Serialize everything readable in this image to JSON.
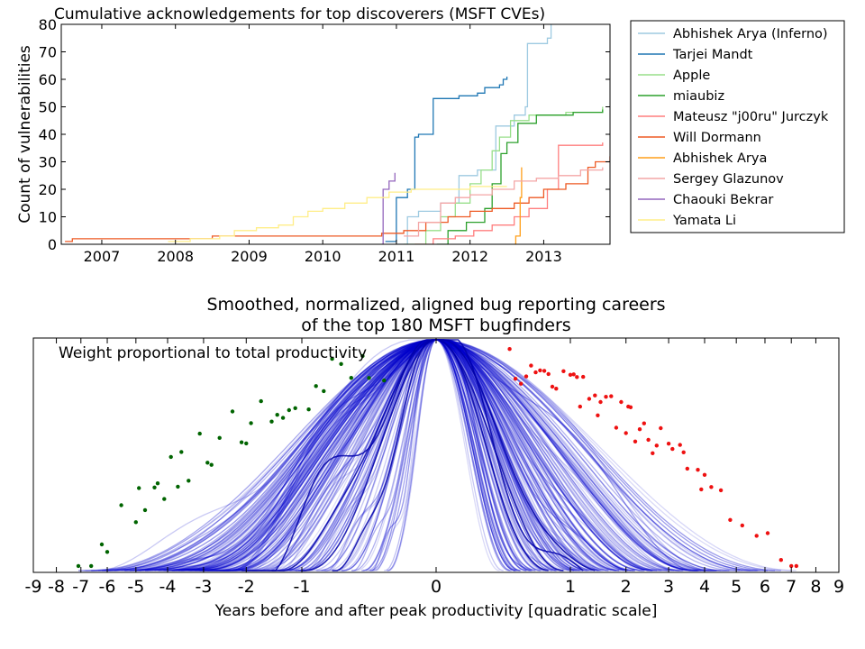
{
  "chart_data": [
    {
      "type": "line",
      "title": "Cumulative acknowledgements for top discoverers (MSFT CVEs)",
      "xlabel": "",
      "ylabel": "Count of vulnerabilities",
      "xlim": [
        2006.45,
        2013.9
      ],
      "ylim": [
        0,
        80
      ],
      "x_ticks": [
        "2007",
        "2008",
        "2009",
        "2010",
        "2011",
        "2012",
        "2013"
      ],
      "y_ticks": [
        "0",
        "10",
        "20",
        "30",
        "40",
        "50",
        "60",
        "70",
        "80"
      ],
      "grid": false,
      "legend_position": "outside-right",
      "series": [
        {
          "name": "Abhishek Arya (Inferno)",
          "color": "#9ecae1",
          "points": [
            [
              2011.0,
              0
            ],
            [
              2011.15,
              10
            ],
            [
              2011.3,
              12
            ],
            [
              2011.6,
              15
            ],
            [
              2011.85,
              25
            ],
            [
              2012.1,
              27
            ],
            [
              2012.35,
              43
            ],
            [
              2012.6,
              47
            ],
            [
              2012.75,
              50
            ],
            [
              2012.78,
              73
            ],
            [
              2013.05,
              75
            ],
            [
              2013.1,
              80
            ]
          ]
        },
        {
          "name": "Tarjei Mandt",
          "color": "#1f77b4",
          "points": [
            [
              2010.85,
              1
            ],
            [
              2011.0,
              17
            ],
            [
              2011.15,
              20
            ],
            [
              2011.25,
              39
            ],
            [
              2011.3,
              40
            ],
            [
              2011.45,
              40
            ],
            [
              2011.5,
              53
            ],
            [
              2011.85,
              54
            ],
            [
              2012.1,
              55
            ],
            [
              2012.2,
              57
            ],
            [
              2012.4,
              58
            ],
            [
              2012.45,
              60
            ],
            [
              2012.5,
              61
            ]
          ]
        },
        {
          "name": "Apple",
          "color": "#98df8a",
          "points": [
            [
              2011.1,
              0
            ],
            [
              2011.4,
              5
            ],
            [
              2011.6,
              10
            ],
            [
              2011.8,
              15
            ],
            [
              2012.0,
              22
            ],
            [
              2012.15,
              27
            ],
            [
              2012.3,
              34
            ],
            [
              2012.4,
              39
            ],
            [
              2012.55,
              45
            ],
            [
              2012.8,
              47
            ],
            [
              2013.3,
              48
            ],
            [
              2013.8,
              50
            ]
          ]
        },
        {
          "name": "miaubiz",
          "color": "#2ca02c",
          "points": [
            [
              2011.55,
              0
            ],
            [
              2011.7,
              5
            ],
            [
              2011.95,
              8
            ],
            [
              2012.2,
              13
            ],
            [
              2012.3,
              22
            ],
            [
              2012.42,
              33
            ],
            [
              2012.5,
              37
            ],
            [
              2012.65,
              44
            ],
            [
              2012.9,
              47
            ],
            [
              2013.4,
              48
            ],
            [
              2013.8,
              49
            ]
          ]
        },
        {
          "name": "Mateusz \"j00ru\" Jurczyk",
          "color": "#ff7f7f",
          "points": [
            [
              2011.25,
              0
            ],
            [
              2011.5,
              2
            ],
            [
              2011.8,
              3
            ],
            [
              2012.05,
              5
            ],
            [
              2012.3,
              7
            ],
            [
              2012.6,
              10
            ],
            [
              2012.8,
              13
            ],
            [
              2013.05,
              20
            ],
            [
              2013.2,
              36
            ],
            [
              2013.8,
              37
            ]
          ]
        },
        {
          "name": "Will Dormann",
          "color": "#ee5a24",
          "points": [
            [
              2006.5,
              1
            ],
            [
              2006.6,
              2
            ],
            [
              2007.5,
              2
            ],
            [
              2008.5,
              3
            ],
            [
              2009.5,
              3
            ],
            [
              2010.5,
              3
            ],
            [
              2010.8,
              4
            ],
            [
              2011.1,
              5
            ],
            [
              2011.4,
              8
            ],
            [
              2011.7,
              10
            ],
            [
              2012.0,
              12
            ],
            [
              2012.3,
              13
            ],
            [
              2012.6,
              15
            ],
            [
              2012.8,
              17
            ],
            [
              2013.0,
              20
            ],
            [
              2013.3,
              22
            ],
            [
              2013.6,
              28
            ],
            [
              2013.7,
              30
            ],
            [
              2013.9,
              32
            ]
          ]
        },
        {
          "name": "Abhishek Arya",
          "color": "#ff9f1a",
          "points": [
            [
              2012.6,
              0
            ],
            [
              2012.62,
              3
            ],
            [
              2012.68,
              17
            ],
            [
              2012.7,
              28
            ]
          ]
        },
        {
          "name": "Sergey Glazunov",
          "color": "#f4a6a6",
          "points": [
            [
              2011.1,
              3
            ],
            [
              2011.3,
              8
            ],
            [
              2011.6,
              15
            ],
            [
              2011.8,
              17
            ],
            [
              2012.0,
              18
            ],
            [
              2012.3,
              20
            ],
            [
              2012.6,
              23
            ],
            [
              2012.9,
              24
            ],
            [
              2013.2,
              25
            ],
            [
              2013.5,
              27
            ],
            [
              2013.8,
              28
            ]
          ]
        },
        {
          "name": "Chaouki Bekrar",
          "color": "#9467bd",
          "points": [
            [
              2010.8,
              0
            ],
            [
              2010.82,
              20
            ],
            [
              2010.9,
              23
            ],
            [
              2010.98,
              26
            ]
          ]
        },
        {
          "name": "Yamata Li",
          "color": "#ffee88",
          "points": [
            [
              2007.9,
              1
            ],
            [
              2008.2,
              2
            ],
            [
              2008.6,
              3
            ],
            [
              2008.8,
              5
            ],
            [
              2009.1,
              6
            ],
            [
              2009.4,
              7
            ],
            [
              2009.6,
              10
            ],
            [
              2009.8,
              12
            ],
            [
              2010.0,
              13
            ],
            [
              2010.3,
              15
            ],
            [
              2010.6,
              17
            ],
            [
              2010.9,
              19
            ],
            [
              2011.2,
              20
            ],
            [
              2011.6,
              20
            ],
            [
              2012.0,
              21
            ],
            [
              2012.5,
              21
            ]
          ]
        }
      ]
    },
    {
      "type": "line",
      "title": "Smoothed, normalized, aligned bug reporting careers\nof the top 180 MSFT bugfinders",
      "subtitle_lines": [
        "Smoothed, normalized, aligned bug reporting careers",
        "of the top 180 MSFT bugfinders"
      ],
      "annotation": "Weight proportional to total productivity",
      "xlabel": "Years before and after peak productivity [quadratic scale]",
      "ylabel": "",
      "xlim": [
        -9,
        9
      ],
      "x_scale": "quadratic",
      "x_ticks": [
        "-9",
        "-8",
        "-7",
        "-6",
        "-5",
        "-4",
        "-3",
        "-2",
        "-1",
        "0",
        "1",
        "2",
        "3",
        "4",
        "5",
        "6",
        "7",
        "8",
        "9"
      ],
      "y_ticks": [],
      "line_color": "#0000cc",
      "start_marker_color": "#006400",
      "end_marker_color": "#ee1111",
      "grid": false,
      "series_count": 180,
      "career_starts": [
        -7.1,
        -6.6,
        -6.0,
        -5.0,
        -4.9,
        -4.7,
        -4.4,
        -4.1,
        -3.9,
        -3.7,
        -3.4,
        -3.1,
        -2.9,
        -2.6,
        -2.3,
        -2.1,
        -1.9,
        -1.7,
        -1.5,
        -1.4,
        -1.2,
        -1.1,
        -0.9,
        -0.8,
        -0.7,
        -0.5,
        -0.4,
        -0.3,
        -0.25,
        -0.15,
        -6.2,
        -5.5,
        -4.3,
        -3.6,
        -2.8,
        -2.0,
        -1.3,
        -0.6
      ],
      "career_ends": [
        0.3,
        0.35,
        0.4,
        0.5,
        0.55,
        0.6,
        0.7,
        0.75,
        0.8,
        0.9,
        1.0,
        1.05,
        1.1,
        1.2,
        1.3,
        1.4,
        1.5,
        1.6,
        1.7,
        1.8,
        1.9,
        2.0,
        2.1,
        2.2,
        2.3,
        2.4,
        2.5,
        2.6,
        2.8,
        3.0,
        3.1,
        3.3,
        3.5,
        3.8,
        4.0,
        4.2,
        4.5,
        4.8,
        5.2,
        5.7,
        6.1,
        6.6,
        7.0,
        7.2,
        1.45,
        2.05,
        0.65,
        0.45,
        1.15,
        2.7,
        3.4,
        3.9
      ]
    }
  ]
}
